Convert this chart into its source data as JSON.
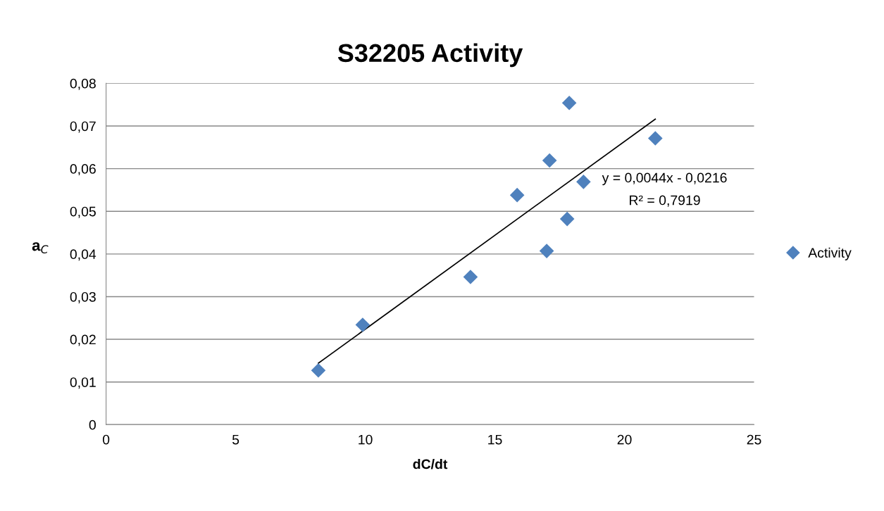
{
  "chart_data": {
    "type": "scatter",
    "title": "S32205 Activity",
    "xlabel": "dC/dt",
    "ylabel": "a$_{C}$",
    "series": [
      {
        "name": "Activity",
        "color": "#4f81bd",
        "marker": "diamond",
        "x": [
          8.19,
          9.9,
          14.06,
          15.86,
          17.0,
          17.11,
          17.79,
          17.87,
          18.42,
          21.19
        ],
        "values": [
          0.0127,
          0.0234,
          0.0346,
          0.0538,
          0.0407,
          0.0619,
          0.0482,
          0.0754,
          0.0569,
          0.0671
        ]
      },
      {
        "type": "line",
        "color": "#000000",
        "x": [
          8.19,
          21.19
        ],
        "values": [
          0.0144,
          0.0716
        ]
      }
    ],
    "annotations": [
      "y = 0,0044x - 0,0216",
      "R² = 0,7919"
    ],
    "xlim": [
      0,
      25
    ],
    "xticks": [
      0,
      5,
      10,
      15,
      20,
      25
    ],
    "ylim": [
      0,
      0.08
    ],
    "yticks": [
      0,
      {
        "value": 0.01,
        "label": "0,01"
      },
      {
        "value": 0.02,
        "label": "0,02"
      },
      {
        "value": 0.03,
        "label": "0,03"
      },
      {
        "value": 0.04,
        "label": "0,04"
      },
      {
        "value": 0.05,
        "label": "0,05"
      },
      {
        "value": 0.06,
        "label": "0,06"
      },
      {
        "value": 0.07,
        "label": "0,07"
      },
      {
        "value": 0.08,
        "label": "0,08"
      }
    ],
    "grid": "y",
    "legend": "right"
  }
}
